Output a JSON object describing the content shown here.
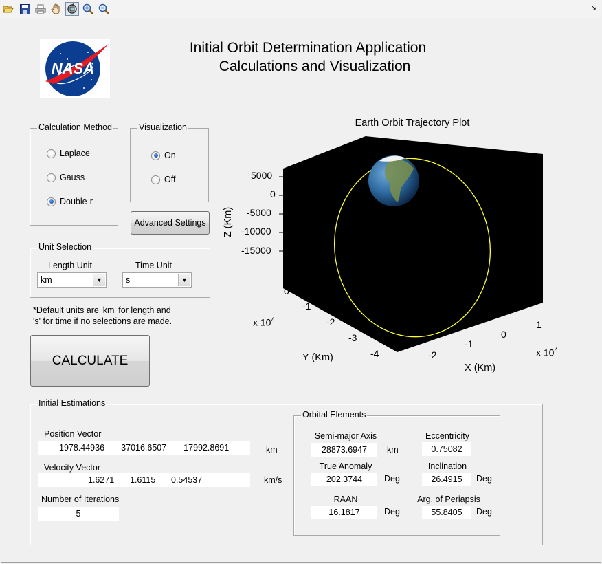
{
  "toolbar": {
    "icons": [
      "open-folder-icon",
      "save-icon",
      "print-icon",
      "pan-hand-icon",
      "rotate-3d-icon",
      "zoom-in-icon",
      "zoom-out-icon"
    ],
    "corner_glyph": "↘"
  },
  "header": {
    "title_line1": "Initial Orbit Determination Application",
    "title_line2": "Calculations and Visualization",
    "logo_text": "NASA"
  },
  "calc_method": {
    "label": "Calculation Method",
    "options": [
      {
        "label": "Laplace",
        "selected": false
      },
      {
        "label": "Gauss",
        "selected": false
      },
      {
        "label": "Double-r",
        "selected": true
      }
    ]
  },
  "visualization": {
    "label": "Visualization",
    "options": [
      {
        "label": "On",
        "selected": true
      },
      {
        "label": "Off",
        "selected": false
      }
    ]
  },
  "advanced_settings_label": "Advanced Settings",
  "unit_selection": {
    "label": "Unit Selection",
    "length_label": "Length Unit",
    "length_value": "km",
    "time_label": "Time Unit",
    "time_value": "s"
  },
  "note_line1": "*Default units are 'km' for length and",
  "note_line2": "'s' for time if no selections are made.",
  "calculate_label": "CALCULATE",
  "plot": {
    "title": "Earth Orbit Trajectory Plot",
    "z_label": "Z (Km)",
    "y_label": "Y (Km)",
    "x_label": "X (Km)",
    "z_ticks": [
      "5000",
      "0",
      "-5000",
      "-10000",
      "-15000"
    ],
    "y_ticks": [
      "0",
      "-1",
      "-2",
      "-3",
      "-4"
    ],
    "x_ticks": [
      "-2",
      "-1",
      "0",
      "1"
    ],
    "y_exp_base": "x 10",
    "y_exp_pow": "4",
    "x_exp_base": "x 10",
    "x_exp_pow": "4",
    "background": "#000000",
    "orbit_color": "#ffff33"
  },
  "initial_estimations": {
    "label": "Initial Estimations",
    "position_label": "Position Vector",
    "position": [
      "1978.44936",
      "-37016.6507",
      "-17992.8691"
    ],
    "position_unit": "km",
    "velocity_label": "Velocity Vector",
    "velocity": [
      "1.6271",
      "1.6115",
      "0.54537"
    ],
    "velocity_unit": "km/s",
    "iterations_label": "Number of Iterations",
    "iterations": "5"
  },
  "orbital_elements": {
    "label": "Orbital Elements",
    "sma_label": "Semi-major Axis",
    "sma": "28873.6947",
    "sma_unit": "km",
    "ecc_label": "Eccentricity",
    "ecc": "0.75082",
    "ta_label": "True Anomaly",
    "ta": "202.3744",
    "ta_unit": "Deg",
    "inc_label": "Inclination",
    "inc": "26.4915",
    "inc_unit": "Deg",
    "raan_label": "RAAN",
    "raan": "16.1817",
    "raan_unit": "Deg",
    "argp_label": "Arg. of Periapsis",
    "argp": "55.8405",
    "argp_unit": "Deg"
  }
}
